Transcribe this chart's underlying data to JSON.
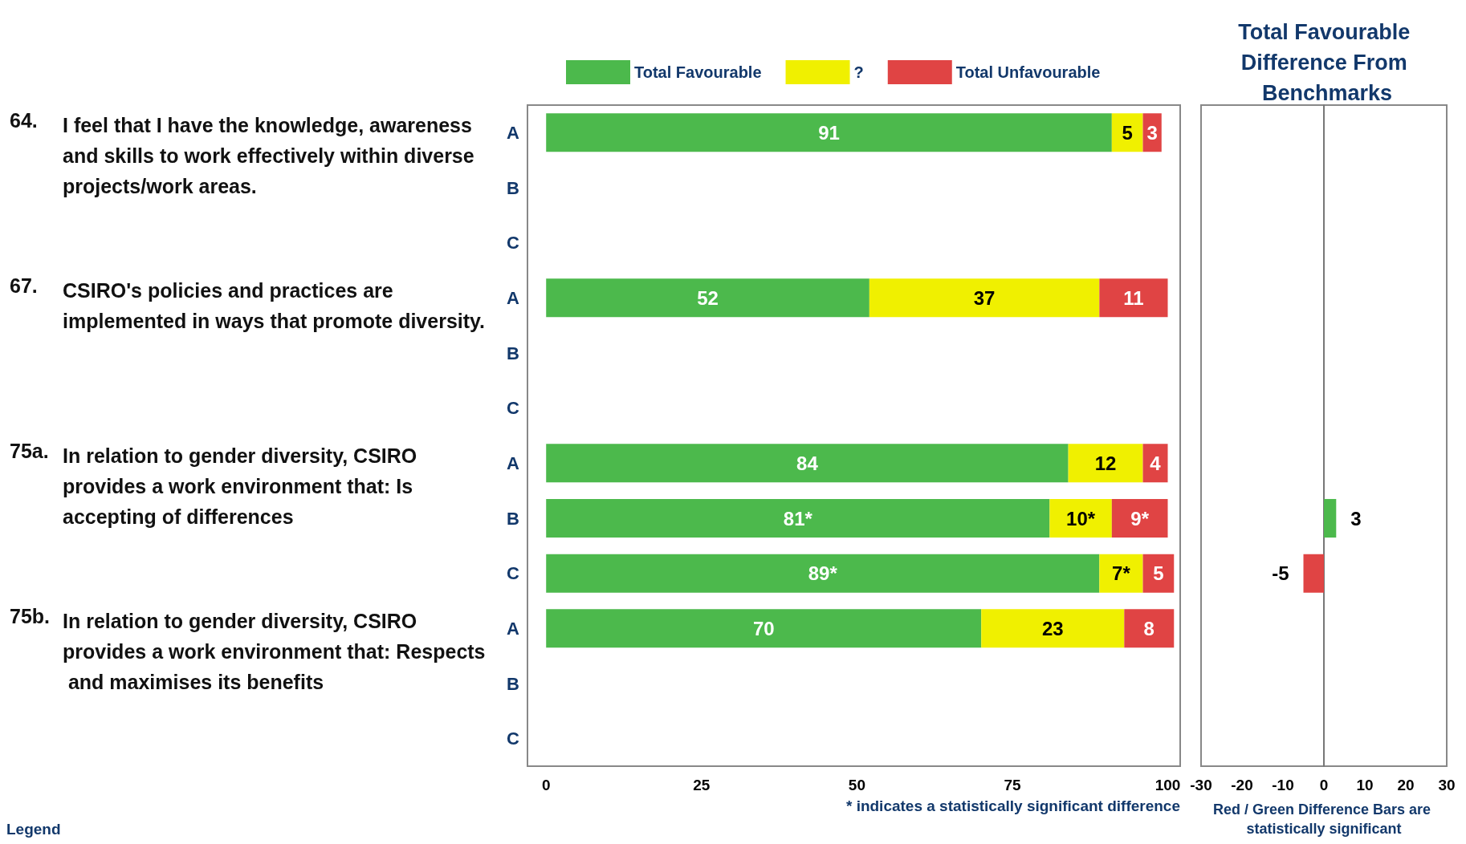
{
  "chart_data": [
    {
      "type": "bar",
      "orientation": "horizontal",
      "stacked": true,
      "categories": [
        "A",
        "B",
        "C",
        "A",
        "B",
        "C",
        "A",
        "B",
        "C",
        "A",
        "B",
        "C"
      ],
      "series": [
        {
          "name": "Total Favourable",
          "color": "#4cb94c",
          "values": [
            91,
            null,
            null,
            52,
            null,
            null,
            84,
            81,
            89,
            70,
            null,
            null
          ],
          "value_labels": [
            "91",
            null,
            null,
            "52",
            null,
            null,
            "84",
            "81*",
            "89*",
            "70",
            null,
            null
          ]
        },
        {
          "name": "?",
          "color": "#f0f000",
          "values": [
            5,
            null,
            null,
            37,
            null,
            null,
            12,
            10,
            7,
            23,
            null,
            null
          ],
          "value_labels": [
            "5",
            null,
            null,
            "37",
            null,
            null,
            "12",
            "10*",
            "7*",
            "23",
            null,
            null
          ]
        },
        {
          "name": "Total Unfavourable",
          "color": "#e04444",
          "values": [
            3,
            null,
            null,
            11,
            null,
            null,
            4,
            9,
            5,
            8,
            null,
            null
          ],
          "value_labels": [
            "3",
            null,
            null,
            "11",
            null,
            null,
            "4",
            "9*",
            "5",
            "8",
            null,
            null
          ]
        }
      ],
      "xlim": [
        -3,
        102
      ],
      "xticks": [
        0,
        25,
        50,
        75,
        100
      ],
      "legend": "top",
      "annotations": [
        "64. I feel that I have the knowledge, awareness and skills to work effectively within diverse projects/work areas.",
        "67. CSIRO's policies and practices are implemented in ways that promote diversity.",
        "75a. In relation to gender diversity, CSIRO provides a work environment that: Is accepting of differences",
        "75b. In relation to gender diversity, CSIRO provides a work environment that: Respects and maximises its benefits",
        "* indicates a statistically significant difference",
        "Legend"
      ]
    },
    {
      "type": "bar",
      "orientation": "horizontal",
      "title": "Total Favourable Difference From Benchmarks",
      "xlabel": "Red / Green Difference Bars are statistically significant",
      "categories": [
        null,
        null,
        null,
        null,
        null,
        null,
        null,
        null,
        null,
        null,
        null,
        null
      ],
      "values": [
        null,
        null,
        null,
        null,
        null,
        null,
        null,
        3,
        -5,
        null,
        null,
        null
      ],
      "colors": [
        null,
        null,
        null,
        null,
        null,
        null,
        null,
        "#4cb94c",
        "#e04444",
        null,
        null,
        null
      ],
      "data_labels": true,
      "xlim": [
        -30,
        30
      ],
      "xticks": [
        -30,
        -20,
        -10,
        0,
        10,
        20,
        30
      ]
    }
  ]
}
